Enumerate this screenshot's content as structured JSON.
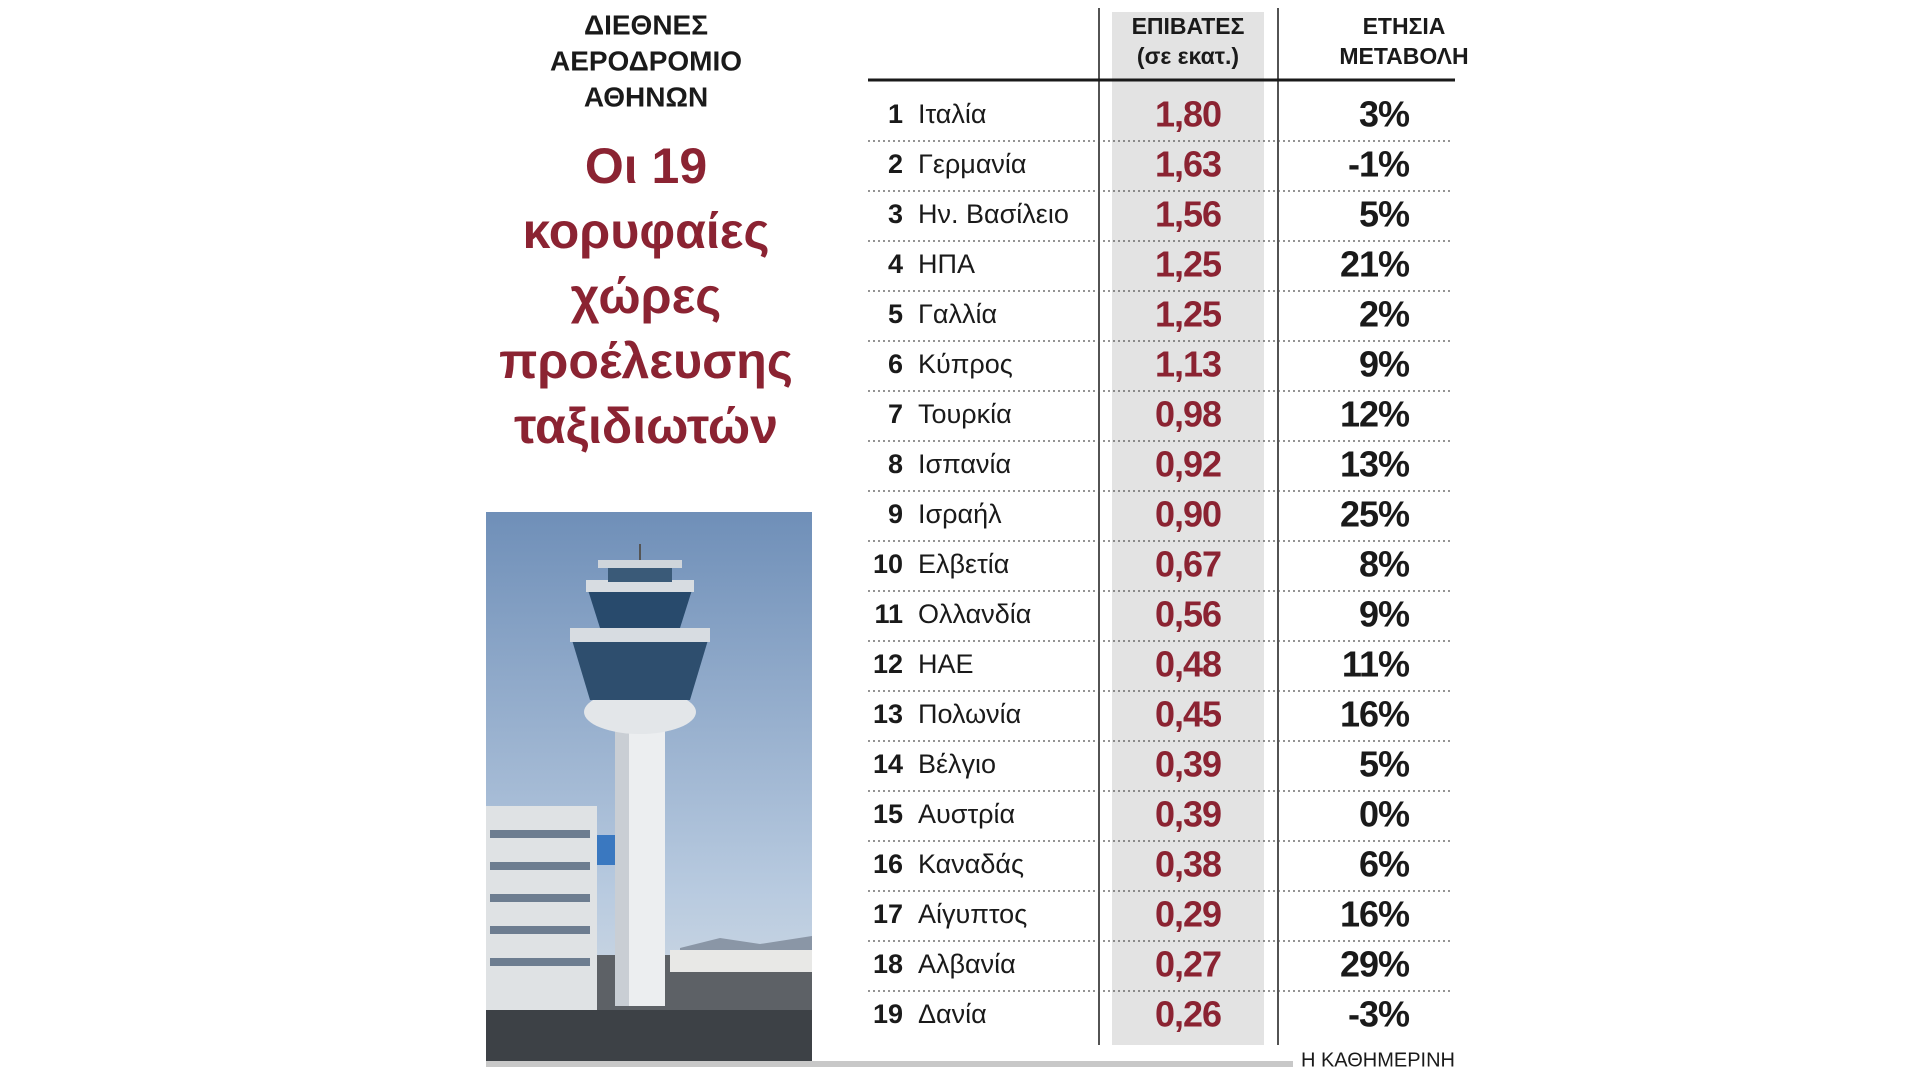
{
  "header": {
    "kicker_lines": [
      "ΔΙΕΘΝΕΣ",
      "ΑΕΡΟΔΡΟΜΙΟ",
      "ΑΘΗΝΩΝ"
    ],
    "headline_lines": [
      "Οι 19",
      "κορυφαίες",
      "χώρες",
      "προέλευσης",
      "ταξιδιωτών"
    ]
  },
  "table": {
    "columns": [
      [
        "ΕΠΙΒΑΤΕΣ",
        "(σε εκατ.)"
      ],
      [
        "ΕΤΗΣΙΑ",
        "ΜΕΤΑΒΟΛΗ"
      ]
    ],
    "rows": [
      [
        "1",
        "Ιταλία",
        "1,80",
        "3%"
      ],
      [
        "2",
        "Γερμανία",
        "1,63",
        "-1%"
      ],
      [
        "3",
        "Ην. Βασίλειο",
        "1,56",
        "5%"
      ],
      [
        "4",
        "ΗΠΑ",
        "1,25",
        "21%"
      ],
      [
        "5",
        "Γαλλία",
        "1,25",
        "2%"
      ],
      [
        "6",
        "Κύπρος",
        "1,13",
        "9%"
      ],
      [
        "7",
        "Τουρκία",
        "0,98",
        "12%"
      ],
      [
        "8",
        "Ισπανία",
        "0,92",
        "13%"
      ],
      [
        "9",
        "Ισραήλ",
        "0,90",
        "25%"
      ],
      [
        "10",
        "Ελβετία",
        "0,67",
        "8%"
      ],
      [
        "11",
        "Ολλανδία",
        "0,56",
        "9%"
      ],
      [
        "12",
        "ΗΑΕ",
        "0,48",
        "11%"
      ],
      [
        "13",
        "Πολωνία",
        "0,45",
        "16%"
      ],
      [
        "14",
        "Βέλγιο",
        "0,39",
        "5%"
      ],
      [
        "15",
        "Αυστρία",
        "0,39",
        "0%"
      ],
      [
        "16",
        "Καναδάς",
        "0,38",
        "6%"
      ],
      [
        "17",
        "Αίγυπτος",
        "0,29",
        "16%"
      ],
      [
        "18",
        "Αλβανία",
        "0,27",
        "29%"
      ],
      [
        "19",
        "Δανία",
        "0,26",
        "-3%"
      ]
    ]
  },
  "footer": {
    "source": "Η ΚΑΘΗΜΕΡΙΝΗ"
  }
}
